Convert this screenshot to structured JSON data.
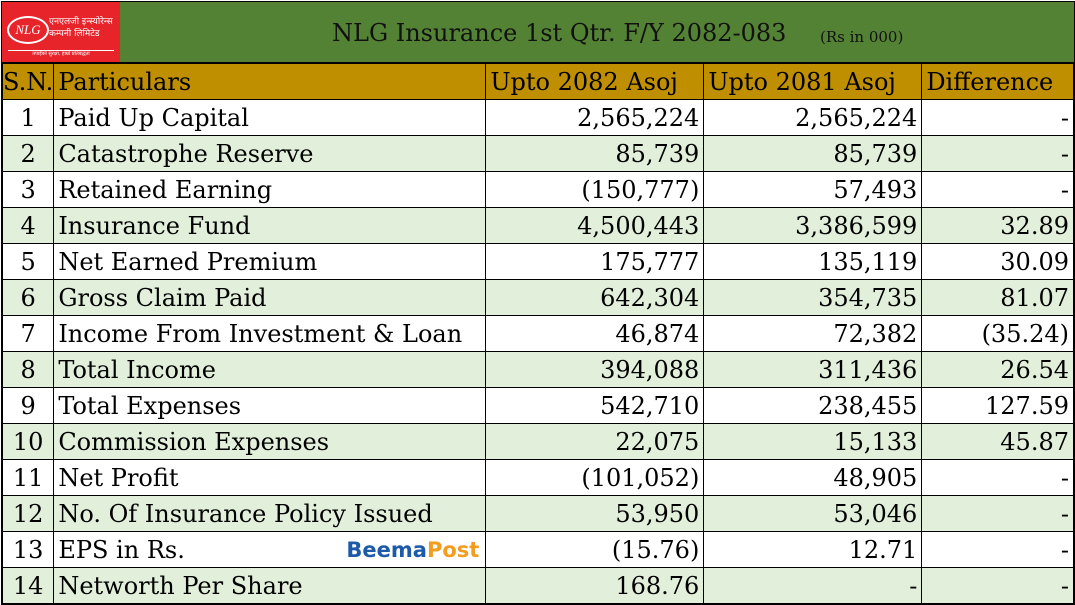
{
  "logo": {
    "initials": "NLG",
    "name_line1": "एनएलजी इन्स्योरेन्स",
    "name_line2": "कम्पनी लिमिटेड",
    "tagline": "तपाईंको सुरक्षा, हाम्रो प्रतिबद्धता"
  },
  "header": {
    "title": "NLG Insurance 1st Qtr. F/Y 2082-083",
    "unit": "(Rs in 000)"
  },
  "columns": [
    "S.N.",
    "Particulars",
    "Upto 2082 Asoj",
    "Upto 2081 Asoj",
    "Difference"
  ],
  "rows": [
    {
      "sn": "1",
      "particular": "Paid Up Capital",
      "cur": "2,565,224",
      "prev": "2,565,224",
      "diff": "-"
    },
    {
      "sn": "2",
      "particular": "Catastrophe Reserve",
      "cur": "85,739",
      "prev": "85,739",
      "diff": "-"
    },
    {
      "sn": "3",
      "particular": "Retained Earning",
      "cur": "(150,777)",
      "prev": "57,493",
      "diff": "-"
    },
    {
      "sn": "4",
      "particular": "Insurance Fund",
      "cur": "4,500,443",
      "prev": "3,386,599",
      "diff": "32.89"
    },
    {
      "sn": "5",
      "particular": "Net Earned Premium",
      "cur": "175,777",
      "prev": "135,119",
      "diff": "30.09"
    },
    {
      "sn": "6",
      "particular": "Gross Claim Paid",
      "cur": "642,304",
      "prev": "354,735",
      "diff": "81.07"
    },
    {
      "sn": "7",
      "particular": "Income From Investment & Loan",
      "cur": "46,874",
      "prev": "72,382",
      "diff": "(35.24)"
    },
    {
      "sn": "8",
      "particular": "Total Income",
      "cur": "394,088",
      "prev": "311,436",
      "diff": "26.54"
    },
    {
      "sn": "9",
      "particular": "Total Expenses",
      "cur": "542,710",
      "prev": "238,455",
      "diff": "127.59"
    },
    {
      "sn": "10",
      "particular": "Commission Expenses",
      "cur": "22,075",
      "prev": "15,133",
      "diff": "45.87"
    },
    {
      "sn": "11",
      "particular": "Net Profit",
      "cur": "(101,052)",
      "prev": "48,905",
      "diff": "-"
    },
    {
      "sn": "12",
      "particular": "No. Of Insurance Policy Issued",
      "cur": "53,950",
      "prev": "53,046",
      "diff": "-"
    },
    {
      "sn": "13",
      "particular": "EPS in Rs.",
      "cur": "(15.76)",
      "prev": "12.71",
      "diff": "-"
    },
    {
      "sn": "14",
      "particular": "Networth Per Share",
      "cur": "168.76",
      "prev": "-",
      "diff": "-"
    }
  ],
  "watermark": {
    "part1": "Beema",
    "part2": "Post"
  }
}
